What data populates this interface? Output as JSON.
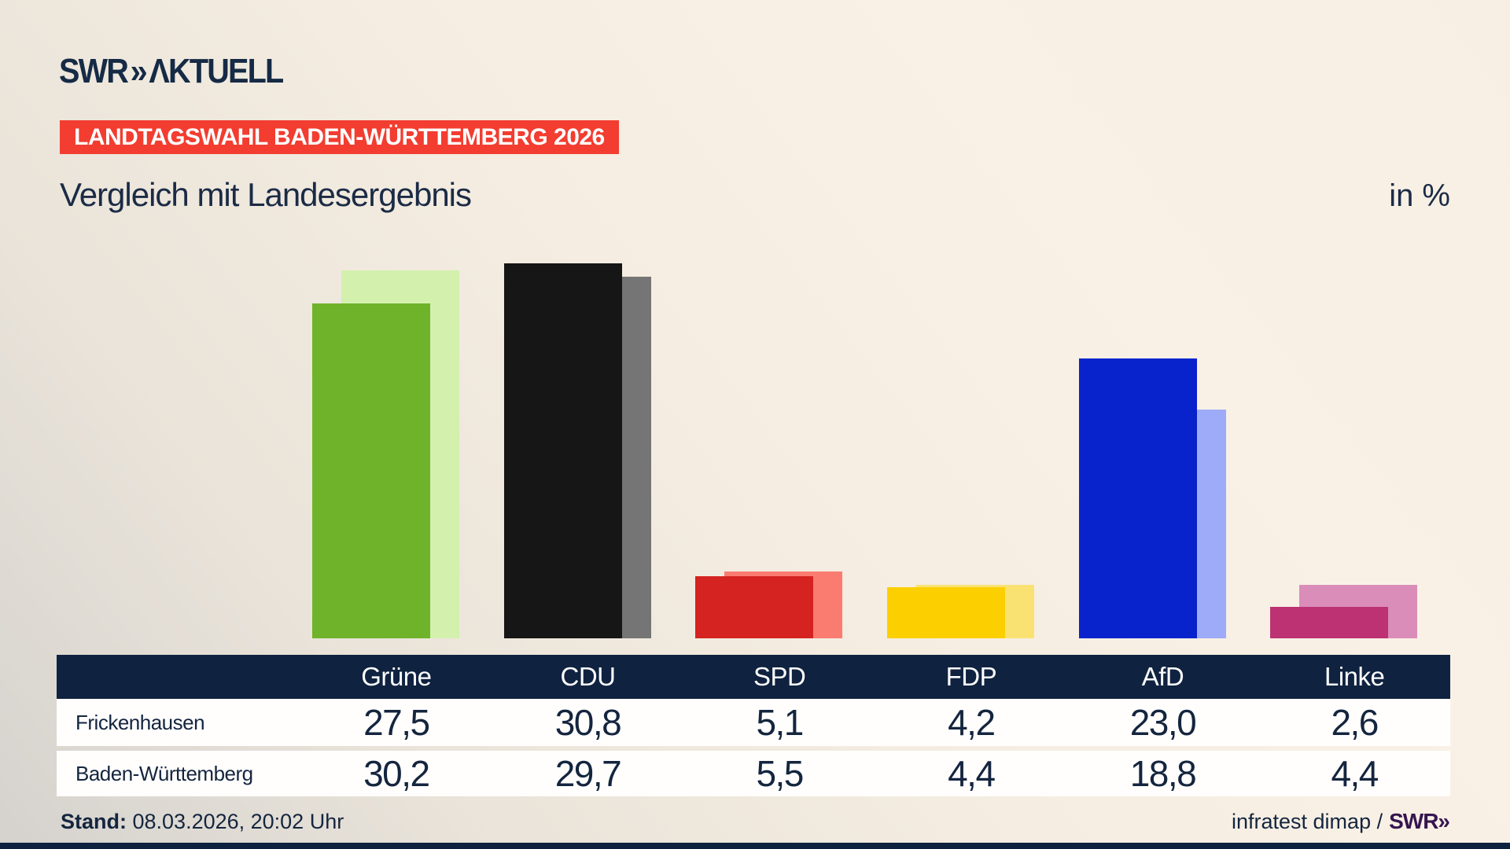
{
  "brand": {
    "swr": "SWR",
    "chevron": "»",
    "aktuell": "ΛKTUELL"
  },
  "header": {
    "banner": "LANDTAGSWAHL BADEN-WÜRTTEMBERG 2026",
    "title": "Vergleich mit Landesergebnis",
    "unit": "in %"
  },
  "chart_data": {
    "type": "bar",
    "title": "Vergleich mit Landesergebnis",
    "unit": "%",
    "categories": [
      "Grüne",
      "CDU",
      "SPD",
      "FDP",
      "AfD",
      "Linke"
    ],
    "series": [
      {
        "name": "Frickenhausen",
        "values": [
          27.5,
          30.8,
          5.1,
          4.2,
          23.0,
          2.6
        ],
        "colors": [
          "#6fb32a",
          "#161616",
          "#d42320",
          "#fccf00",
          "#0823cc",
          "#bc3273"
        ]
      },
      {
        "name": "Baden-Württemberg",
        "values": [
          30.2,
          29.7,
          5.5,
          4.4,
          18.8,
          4.4
        ],
        "colors": [
          "#d3f0ad",
          "#757575",
          "#fa7c70",
          "#f9e271",
          "#9dabf8",
          "#db8db9"
        ]
      }
    ],
    "ylim": [
      0,
      31
    ],
    "grid": false,
    "legend_position": "table-below"
  },
  "table": {
    "columns": [
      "Grüne",
      "CDU",
      "SPD",
      "FDP",
      "AfD",
      "Linke"
    ],
    "rows": [
      {
        "label": "Frickenhausen",
        "values": [
          "27,5",
          "30,8",
          "5,1",
          "4,2",
          "23,0",
          "2,6"
        ]
      },
      {
        "label": "Baden-Württemberg",
        "values": [
          "30,2",
          "29,7",
          "5,5",
          "4,4",
          "18,8",
          "4,4"
        ]
      }
    ]
  },
  "footer": {
    "stand_label": "Stand:",
    "stand_value": " 08.03.2026, 20:02 Uhr",
    "source": "infratest dimap /",
    "source_logo": "SWR»"
  },
  "colors": {
    "background": "#f8f0e5",
    "navy": "#14253e",
    "banner_red": "#f23d30",
    "header_navy": "#0f2240",
    "swr_purple": "#36154f"
  }
}
